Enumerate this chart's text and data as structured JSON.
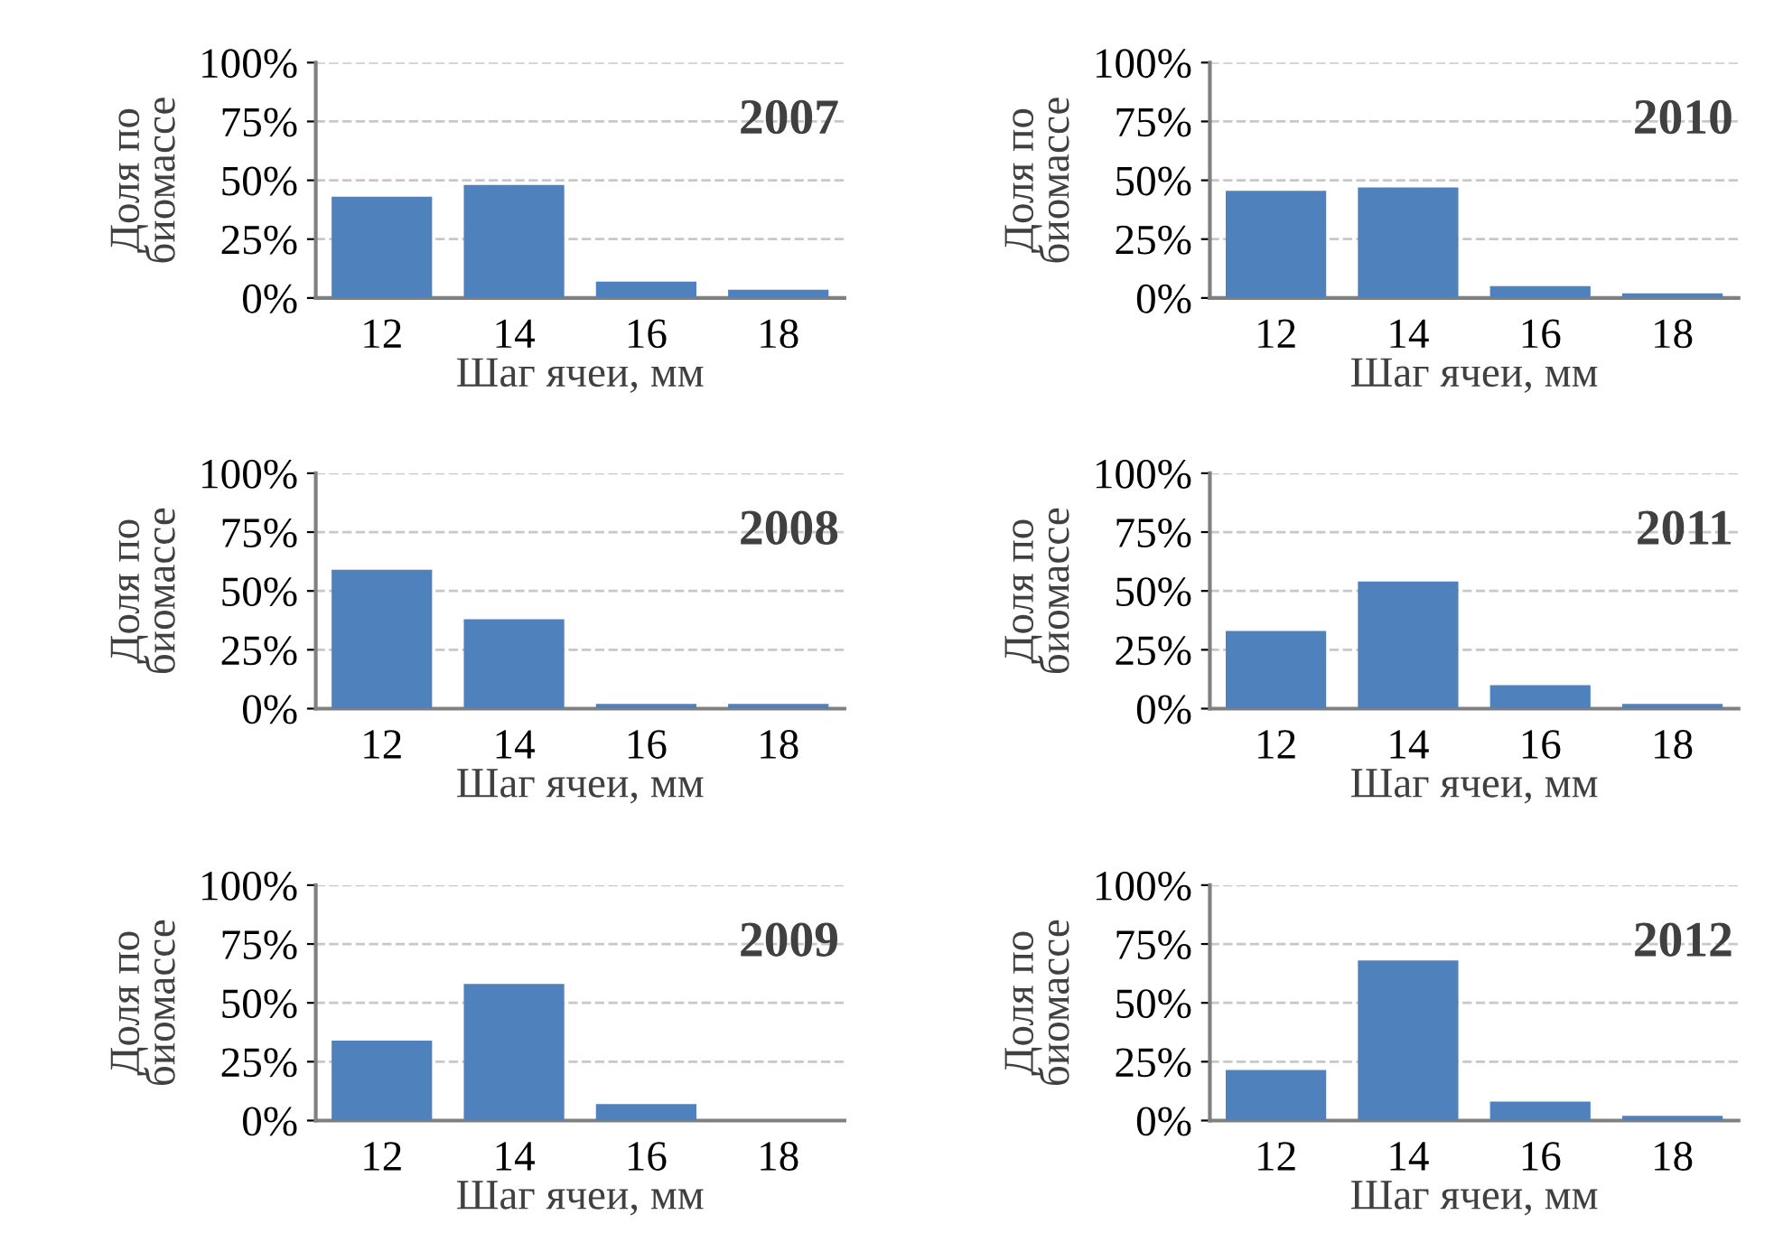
{
  "chart_data": [
    {
      "type": "bar",
      "annotations": [
        "2007"
      ],
      "xlabel": "Шаг ячеи, мм",
      "ylabel": "Доля по\nбиомассе",
      "categories": [
        "12",
        "14",
        "16",
        "18"
      ],
      "values": [
        43,
        48,
        7,
        3.5
      ],
      "color": "#4f81bd",
      "ylim": [
        0,
        100
      ],
      "yticks": [
        {
          "value": 0,
          "label": "0%"
        },
        {
          "value": 25,
          "label": "25%"
        },
        {
          "value": 50,
          "label": "50%"
        },
        {
          "value": 75,
          "label": "75%"
        },
        {
          "value": 100,
          "label": "100%"
        }
      ],
      "grid": "y"
    },
    {
      "type": "bar",
      "annotations": [
        "2010"
      ],
      "xlabel": "Шаг ячеи, мм",
      "ylabel": "Доля по\nбиомассе",
      "categories": [
        "12",
        "14",
        "16",
        "18"
      ],
      "values": [
        45.5,
        47,
        5,
        2
      ],
      "color": "#4f81bd",
      "ylim": [
        0,
        100
      ],
      "yticks": [
        {
          "value": 0,
          "label": "0%"
        },
        {
          "value": 25,
          "label": "25%"
        },
        {
          "value": 50,
          "label": "50%"
        },
        {
          "value": 75,
          "label": "75%"
        },
        {
          "value": 100,
          "label": "100%"
        }
      ],
      "grid": "y"
    },
    {
      "type": "bar",
      "annotations": [
        "2008"
      ],
      "xlabel": "Шаг ячеи, мм",
      "ylabel": "Доля по\nбиомассе",
      "categories": [
        "12",
        "14",
        "16",
        "18"
      ],
      "values": [
        59,
        38,
        2,
        2
      ],
      "color": "#4f81bd",
      "ylim": [
        0,
        100
      ],
      "yticks": [
        {
          "value": 0,
          "label": "0%"
        },
        {
          "value": 25,
          "label": "25%"
        },
        {
          "value": 50,
          "label": "50%"
        },
        {
          "value": 75,
          "label": "75%"
        },
        {
          "value": 100,
          "label": "100%"
        }
      ],
      "grid": "y"
    },
    {
      "type": "bar",
      "annotations": [
        "2011"
      ],
      "xlabel": "Шаг ячеи, мм",
      "ylabel": "Доля по\nбиомассе",
      "categories": [
        "12",
        "14",
        "16",
        "18"
      ],
      "values": [
        33,
        54,
        10,
        2
      ],
      "color": "#4f81bd",
      "ylim": [
        0,
        100
      ],
      "yticks": [
        {
          "value": 0,
          "label": "0%"
        },
        {
          "value": 25,
          "label": "25%"
        },
        {
          "value": 50,
          "label": "50%"
        },
        {
          "value": 75,
          "label": "75%"
        },
        {
          "value": 100,
          "label": "100%"
        }
      ],
      "grid": "y"
    },
    {
      "type": "bar",
      "annotations": [
        "2009"
      ],
      "xlabel": "Шаг ячеи, мм",
      "ylabel": "Доля по\nбиомассе",
      "categories": [
        "12",
        "14",
        "16",
        "18"
      ],
      "values": [
        34,
        58,
        7,
        0
      ],
      "color": "#4f81bd",
      "ylim": [
        0,
        100
      ],
      "yticks": [
        {
          "value": 0,
          "label": "0%"
        },
        {
          "value": 25,
          "label": "25%"
        },
        {
          "value": 50,
          "label": "50%"
        },
        {
          "value": 75,
          "label": "75%"
        },
        {
          "value": 100,
          "label": "100%"
        }
      ],
      "grid": "y"
    },
    {
      "type": "bar",
      "annotations": [
        "2012"
      ],
      "xlabel": "Шаг ячеи, мм",
      "ylabel": "Доля по\nбиомассе",
      "categories": [
        "12",
        "14",
        "16",
        "18"
      ],
      "values": [
        21.5,
        68,
        8,
        2
      ],
      "color": "#4f81bd",
      "ylim": [
        0,
        100
      ],
      "yticks": [
        {
          "value": 0,
          "label": "0%"
        },
        {
          "value": 25,
          "label": "25%"
        },
        {
          "value": 50,
          "label": "50%"
        },
        {
          "value": 75,
          "label": "75%"
        },
        {
          "value": 100,
          "label": "100%"
        }
      ],
      "grid": "y"
    }
  ]
}
